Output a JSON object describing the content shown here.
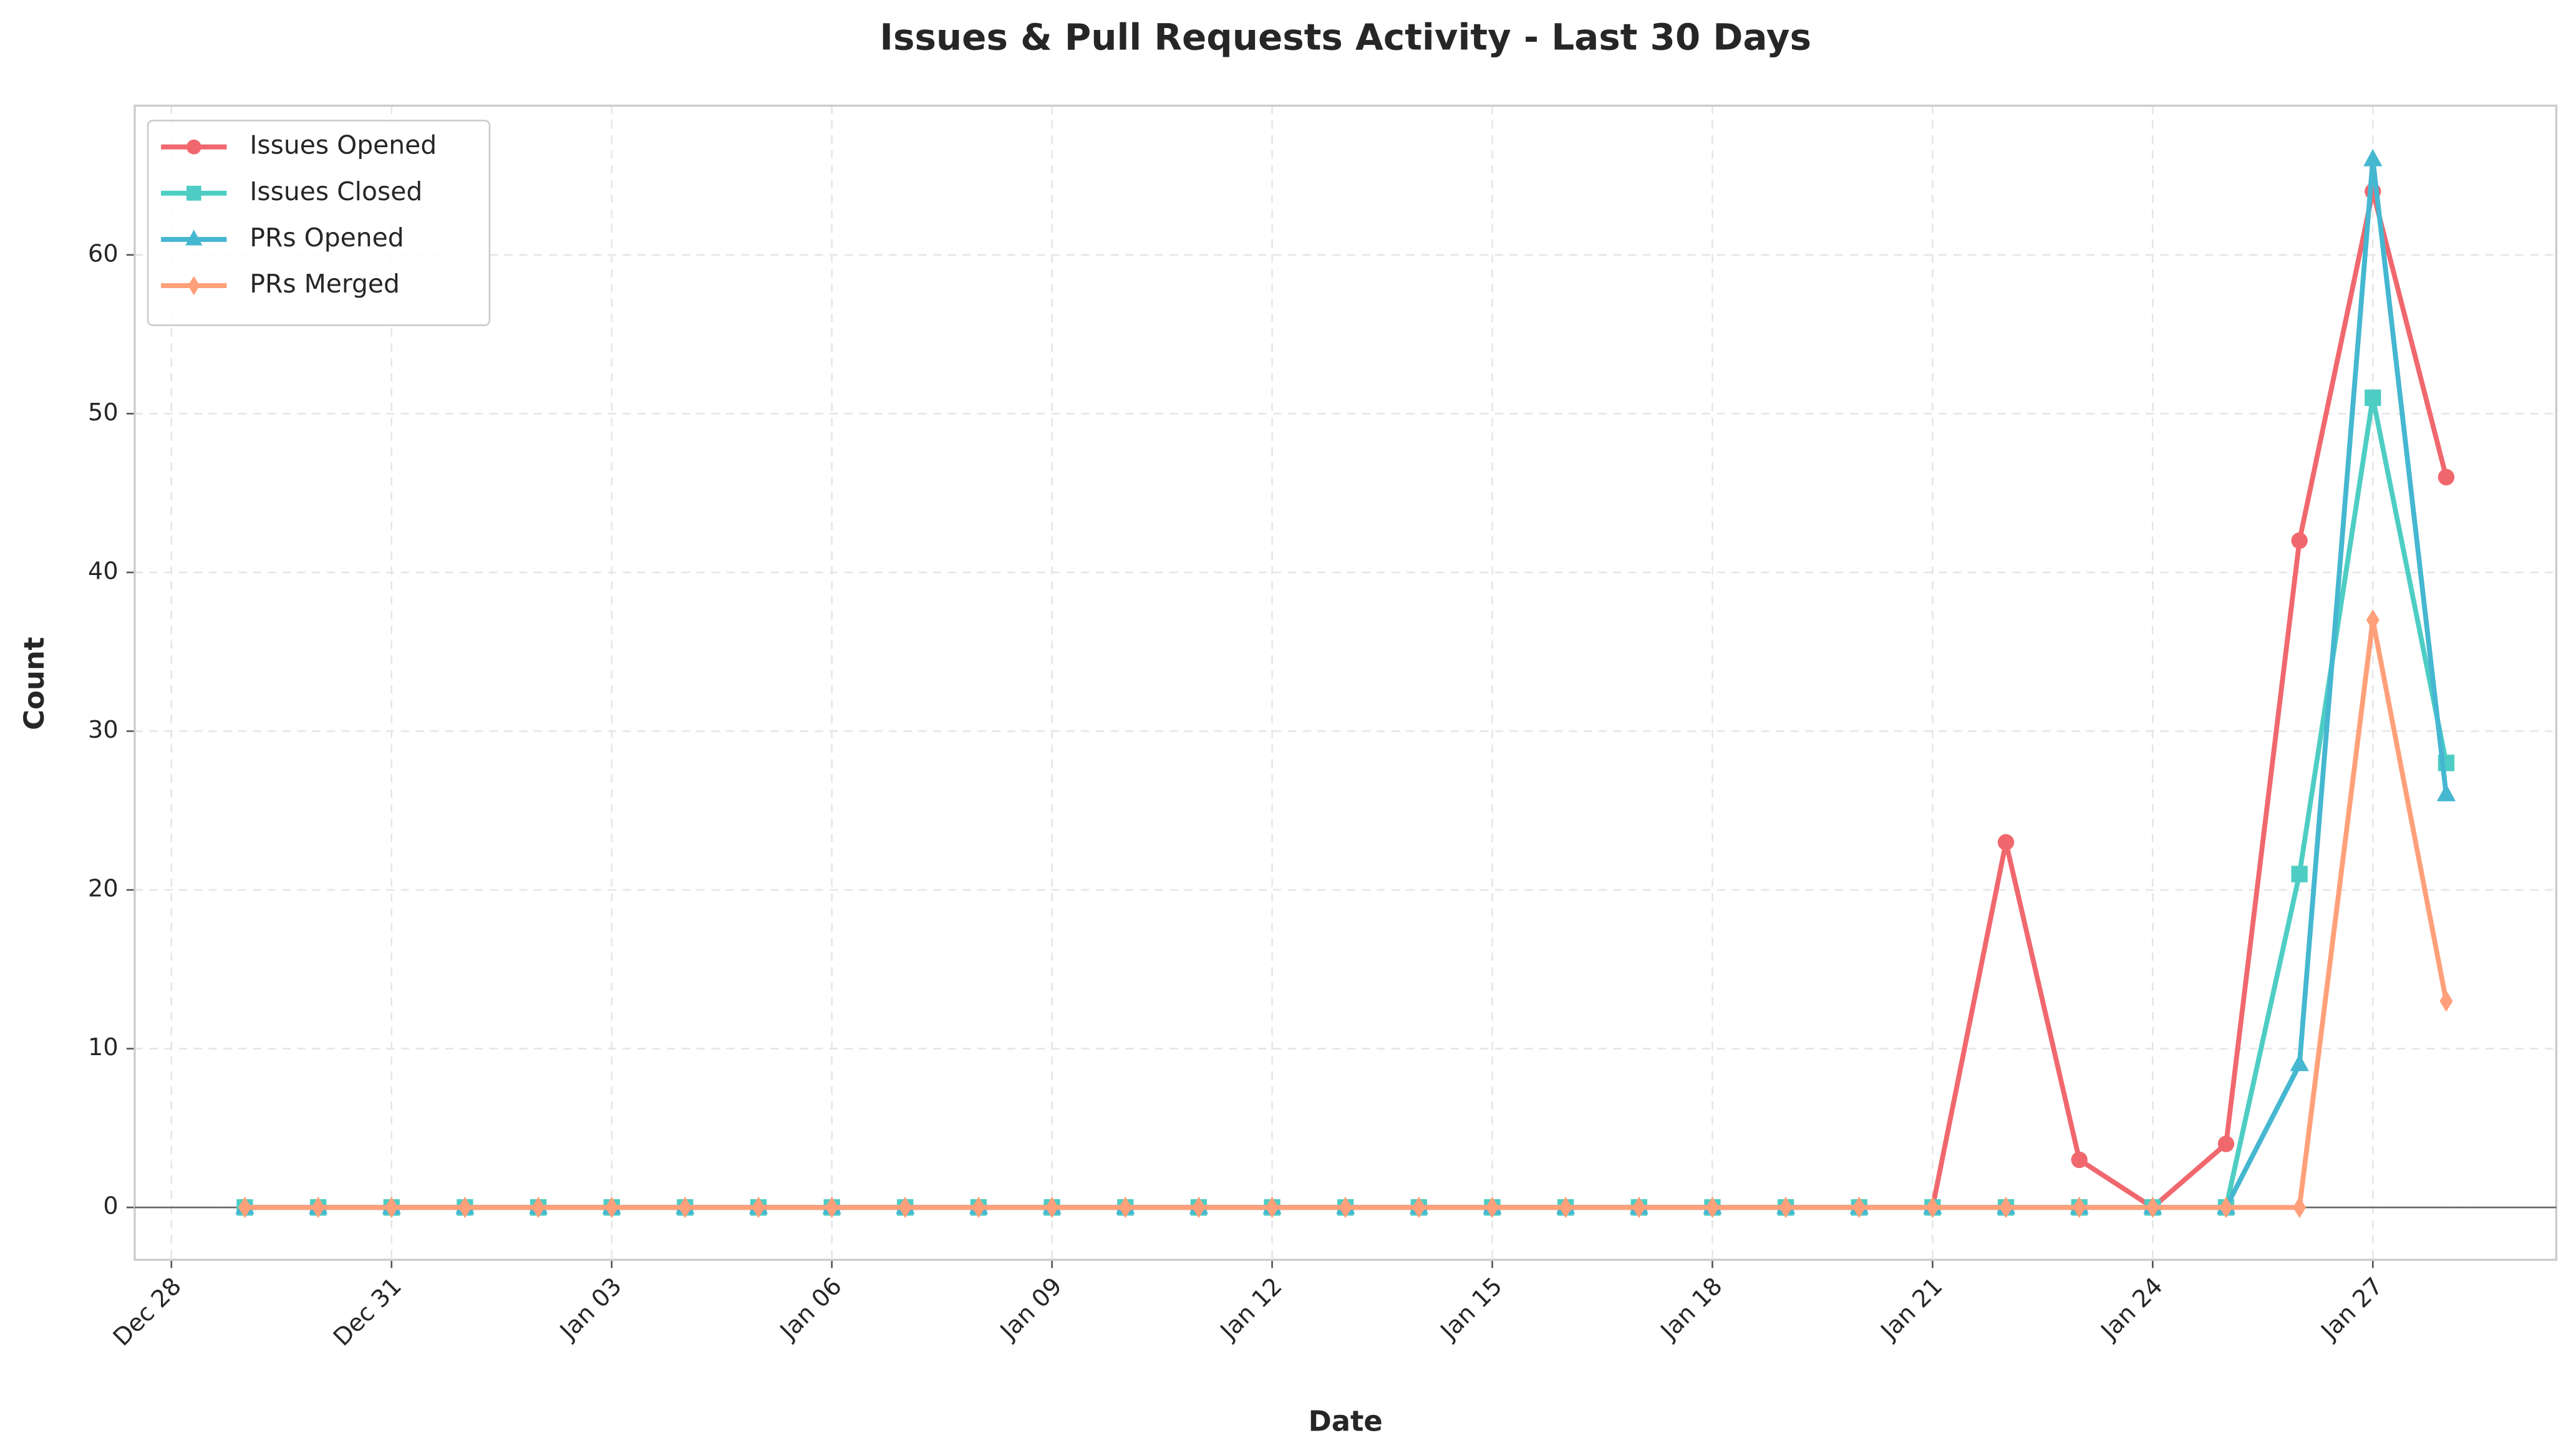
{
  "chart_data": {
    "type": "line",
    "title": "Issues & Pull Requests Activity - Last 30 Days",
    "xlabel": "Date",
    "ylabel": "Count",
    "x": [
      "Dec 29",
      "Dec 30",
      "Dec 31",
      "Jan 01",
      "Jan 02",
      "Jan 03",
      "Jan 04",
      "Jan 05",
      "Jan 06",
      "Jan 07",
      "Jan 08",
      "Jan 09",
      "Jan 10",
      "Jan 11",
      "Jan 12",
      "Jan 13",
      "Jan 14",
      "Jan 15",
      "Jan 16",
      "Jan 17",
      "Jan 18",
      "Jan 19",
      "Jan 20",
      "Jan 21",
      "Jan 22",
      "Jan 23",
      "Jan 24",
      "Jan 25",
      "Jan 26",
      "Jan 27",
      "Jan 28"
    ],
    "series": [
      {
        "name": "Issues Opened",
        "color": "#f0686e",
        "marker": "circle",
        "values": [
          0,
          0,
          0,
          0,
          0,
          0,
          0,
          0,
          0,
          0,
          0,
          0,
          0,
          0,
          0,
          0,
          0,
          0,
          0,
          0,
          0,
          0,
          0,
          0,
          23,
          3,
          0,
          4,
          42,
          64,
          46
        ]
      },
      {
        "name": "Issues Closed",
        "color": "#4ecdc4",
        "marker": "square",
        "values": [
          0,
          0,
          0,
          0,
          0,
          0,
          0,
          0,
          0,
          0,
          0,
          0,
          0,
          0,
          0,
          0,
          0,
          0,
          0,
          0,
          0,
          0,
          0,
          0,
          0,
          0,
          0,
          0,
          21,
          51,
          28
        ]
      },
      {
        "name": "PRs Opened",
        "color": "#45b7d1",
        "marker": "triangle",
        "values": [
          0,
          0,
          0,
          0,
          0,
          0,
          0,
          0,
          0,
          0,
          0,
          0,
          0,
          0,
          0,
          0,
          0,
          0,
          0,
          0,
          0,
          0,
          0,
          0,
          0,
          0,
          0,
          0,
          9,
          66,
          26
        ]
      },
      {
        "name": "PRs Merged",
        "color": "#ffa07a",
        "marker": "diamond",
        "values": [
          0,
          0,
          0,
          0,
          0,
          0,
          0,
          0,
          0,
          0,
          0,
          0,
          0,
          0,
          0,
          0,
          0,
          0,
          0,
          0,
          0,
          0,
          0,
          0,
          0,
          0,
          0,
          0,
          0,
          37,
          13
        ]
      }
    ],
    "xlim": [
      "Dec 28",
      "Jan 29"
    ],
    "xticks": [
      "Dec 28",
      "Dec 31",
      "Jan 03",
      "Jan 06",
      "Jan 09",
      "Jan 12",
      "Jan 15",
      "Jan 18",
      "Jan 21",
      "Jan 24",
      "Jan 27"
    ],
    "ylim": [
      -3.3,
      69.4
    ],
    "yticks": [
      0,
      10,
      20,
      30,
      40,
      50,
      60
    ],
    "grid": true,
    "legend": "upper left"
  }
}
